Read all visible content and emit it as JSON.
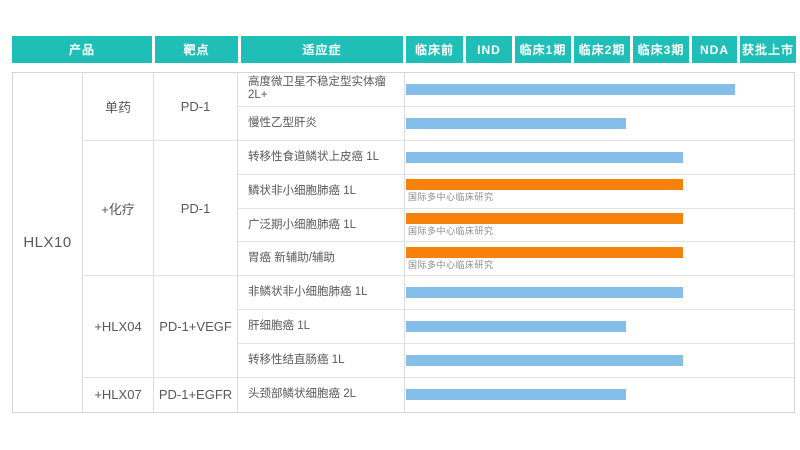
{
  "header": {
    "columns": [
      "产品",
      "靶点",
      "适应症",
      "临床前",
      "IND",
      "临床1期",
      "临床2期",
      "临床3期",
      "NDA",
      "获批上市"
    ]
  },
  "product": {
    "name": "HLX10"
  },
  "groups": [
    {
      "combo": "单药",
      "target": "PD-1"
    },
    {
      "combo": "+化疗",
      "target": "PD-1"
    },
    {
      "combo": "+HLX04",
      "target": "PD-1+VEGF"
    },
    {
      "combo": "+HLX07",
      "target": "PD-1+EGFR"
    }
  ],
  "rows": [
    {
      "indication": "高度微卫星不稳定型实体瘤 2L+",
      "bar": {
        "color": "blue",
        "end_phase": "NDA",
        "end_pct": 84.9,
        "note": ""
      }
    },
    {
      "indication": "慢性乙型肝炎",
      "bar": {
        "color": "blue",
        "end_phase": "临床2期",
        "end_pct": 56.7,
        "note": ""
      }
    },
    {
      "indication": "转移性食道鳞状上皮癌 1L",
      "bar": {
        "color": "blue",
        "end_phase": "临床3期",
        "end_pct": 71.3,
        "note": ""
      }
    },
    {
      "indication": "鳞状非小细胞肺癌 1L",
      "bar": {
        "color": "orange",
        "end_phase": "临床3期",
        "end_pct": 71.3,
        "note": "国际多中心临床研究"
      }
    },
    {
      "indication": "广泛期小细胞肺癌 1L",
      "bar": {
        "color": "orange",
        "end_phase": "临床3期",
        "end_pct": 71.3,
        "note": "国际多中心临床研究"
      }
    },
    {
      "indication": "胃癌 新辅助/辅助",
      "bar": {
        "color": "orange",
        "end_phase": "临床3期",
        "end_pct": 71.3,
        "note": "国际多中心临床研究"
      }
    },
    {
      "indication": "非鳞状非小细胞肺癌 1L",
      "bar": {
        "color": "blue",
        "end_phase": "临床3期",
        "end_pct": 71.3,
        "note": ""
      }
    },
    {
      "indication": "肝细胞癌 1L",
      "bar": {
        "color": "blue",
        "end_phase": "临床2期",
        "end_pct": 56.7,
        "note": ""
      }
    },
    {
      "indication": "转移性结直肠癌 1L",
      "bar": {
        "color": "blue",
        "end_phase": "临床3期",
        "end_pct": 71.3,
        "note": ""
      }
    },
    {
      "indication": "头颈部鳞状细胞癌 2L",
      "bar": {
        "color": "blue",
        "end_phase": "临床2期",
        "end_pct": 56.7,
        "note": ""
      }
    }
  ],
  "colors": {
    "header_teal": "#1FBFB8",
    "bar_blue": "#85BEE8",
    "bar_orange": "#F6820B",
    "note_gray": "#8C8C8C",
    "text_dark": "#595959"
  },
  "chart_data": {
    "type": "bar",
    "orientation": "horizontal",
    "phase_scale": [
      "临床前",
      "IND",
      "临床1期",
      "临床2期",
      "临床3期",
      "NDA",
      "获批上市"
    ],
    "categories": [
      "高度微卫星不稳定型实体瘤 2L+",
      "慢性乙型肝炎",
      "转移性食道鳞状上皮癌 1L",
      "鳞状非小细胞肺癌 1L",
      "广泛期小细胞肺癌 1L",
      "胃癌 新辅助/辅助",
      "非鳞状非小细胞肺癌 1L",
      "肝细胞癌 1L",
      "转移性结直肠癌 1L",
      "头颈部鳞状细胞癌 2L"
    ],
    "values": [
      6,
      4,
      5,
      5,
      5,
      5,
      5,
      4,
      5,
      4
    ],
    "value_scale_note": "1=临床前 2=IND 3=临床1期 4=临床2期 5=临床3期 6=NDA 7=获批上市",
    "end_phase_labels": [
      "NDA",
      "临床2期",
      "临床3期",
      "临床3期",
      "临床3期",
      "临床3期",
      "临床3期",
      "临床2期",
      "临床3期",
      "临床2期"
    ],
    "bar_colors": [
      "blue",
      "blue",
      "blue",
      "orange",
      "orange",
      "orange",
      "blue",
      "blue",
      "blue",
      "blue"
    ],
    "annotations": [
      "",
      "",
      "",
      "国际多中心临床研究",
      "国际多中心临床研究",
      "国际多中心临床研究",
      "",
      "",
      "",
      ""
    ]
  }
}
